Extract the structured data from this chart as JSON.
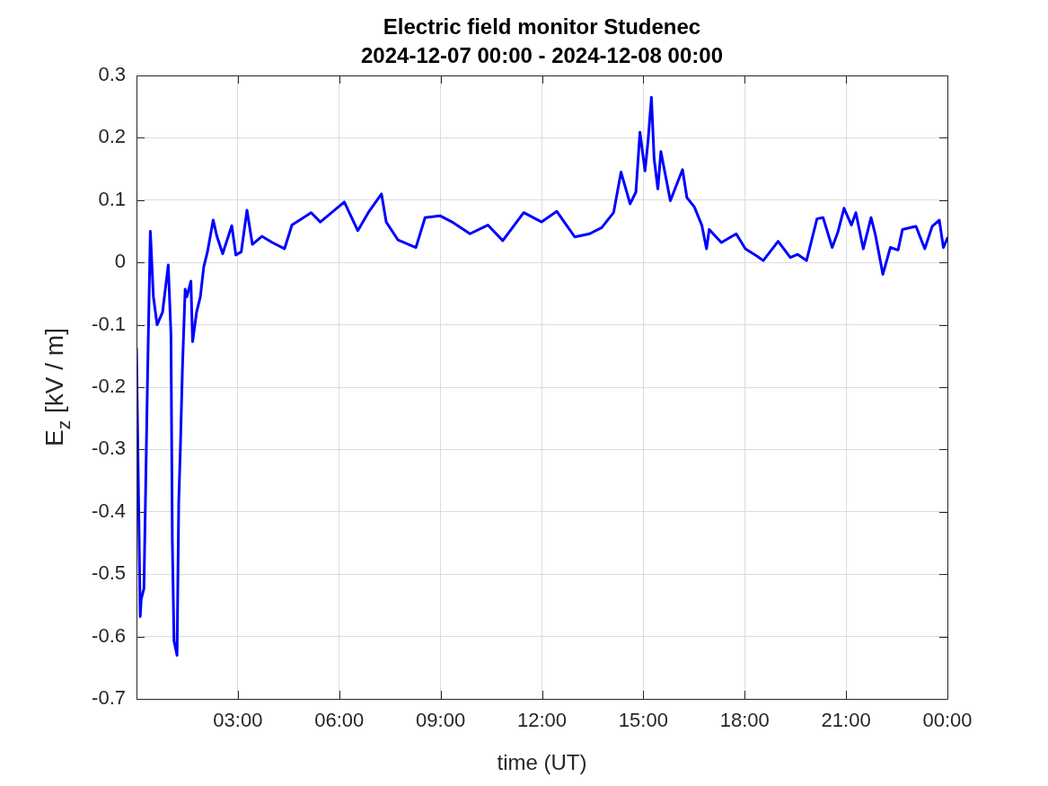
{
  "chart_data": {
    "type": "line",
    "title": "Electric field monitor Studenec",
    "subtitle": "2024-12-07 00:00 - 2024-12-08 00:00",
    "xlabel": "time (UT)",
    "ylabel": "E$_{z}$ [kV / m]",
    "xlim": [
      0,
      24
    ],
    "xticks": [
      {
        "value": 3,
        "label": "03:00"
      },
      {
        "value": 6,
        "label": "06:00"
      },
      {
        "value": 9,
        "label": "09:00"
      },
      {
        "value": 12,
        "label": "12:00"
      },
      {
        "value": 15,
        "label": "15:00"
      },
      {
        "value": 18,
        "label": "18:00"
      },
      {
        "value": 21,
        "label": "21:00"
      },
      {
        "value": 24,
        "label": "00:00"
      }
    ],
    "ylim": [
      -0.7,
      0.3
    ],
    "yticks": [
      -0.7,
      -0.6,
      -0.5,
      -0.4,
      -0.3,
      -0.2,
      -0.1,
      0,
      0.1,
      0.2,
      0.3
    ],
    "grid": true,
    "legend": false,
    "marker": "none",
    "line_style": "solid",
    "series": [
      {
        "color": "#0000ff",
        "x": [
          0,
          0.05,
          0.11,
          0.14,
          0.22,
          0.33,
          0.41,
          0.5,
          0.61,
          0.77,
          0.94,
          1.02,
          1.06,
          1.11,
          1.2,
          1.25,
          1.3,
          1.36,
          1.44,
          1.49,
          1.61,
          1.66,
          1.78,
          1.89,
          1.99,
          2.1,
          2.27,
          2.38,
          2.55,
          2.82,
          2.94,
          3.1,
          3.27,
          3.43,
          3.71,
          4.02,
          4.38,
          4.6,
          5.17,
          5.44,
          6.15,
          6.55,
          6.86,
          7.25,
          7.39,
          7.74,
          8.27,
          8.54,
          8.98,
          9.34,
          9.87,
          10.4,
          10.84,
          11.46,
          11.99,
          12.44,
          12.97,
          13.41,
          13.77,
          14.12,
          14.34,
          14.61,
          14.78,
          14.9,
          15.05,
          15.14,
          15.24,
          15.32,
          15.43,
          15.52,
          15.8,
          16.16,
          16.29,
          16.51,
          16.73,
          16.87,
          16.95,
          17.31,
          17.75,
          18.02,
          18.37,
          18.55,
          18.99,
          19.35,
          19.57,
          19.83,
          20.14,
          20.32,
          20.59,
          20.76,
          20.94,
          21.16,
          21.29,
          21.51,
          21.74,
          21.87,
          22.09,
          22.31,
          22.54,
          22.67,
          23.07,
          23.33,
          23.55,
          23.76,
          23.88,
          24
        ],
        "values": [
          -0.138,
          -0.337,
          -0.568,
          -0.54,
          -0.523,
          -0.175,
          0.05,
          -0.055,
          -0.1,
          -0.08,
          -0.004,
          -0.115,
          -0.445,
          -0.607,
          -0.63,
          -0.385,
          -0.295,
          -0.169,
          -0.043,
          -0.055,
          -0.03,
          -0.127,
          -0.079,
          -0.055,
          -0.007,
          0.017,
          0.068,
          0.042,
          0.014,
          0.059,
          0.012,
          0.017,
          0.084,
          0.029,
          0.042,
          0.032,
          0.022,
          0.06,
          0.08,
          0.065,
          0.097,
          0.051,
          0.08,
          0.11,
          0.065,
          0.036,
          0.024,
          0.072,
          0.075,
          0.065,
          0.046,
          0.06,
          0.035,
          0.08,
          0.065,
          0.082,
          0.041,
          0.046,
          0.056,
          0.08,
          0.145,
          0.094,
          0.113,
          0.209,
          0.147,
          0.195,
          0.265,
          0.166,
          0.118,
          0.178,
          0.099,
          0.149,
          0.104,
          0.089,
          0.06,
          0.022,
          0.053,
          0.032,
          0.046,
          0.022,
          0.01,
          0.003,
          0.034,
          0.008,
          0.013,
          0.003,
          0.07,
          0.072,
          0.024,
          0.049,
          0.087,
          0.06,
          0.08,
          0.022,
          0.072,
          0.044,
          -0.019,
          0.024,
          0.02,
          0.053,
          0.058,
          0.022,
          0.058,
          0.068,
          0.024,
          0.039
        ]
      }
    ]
  }
}
